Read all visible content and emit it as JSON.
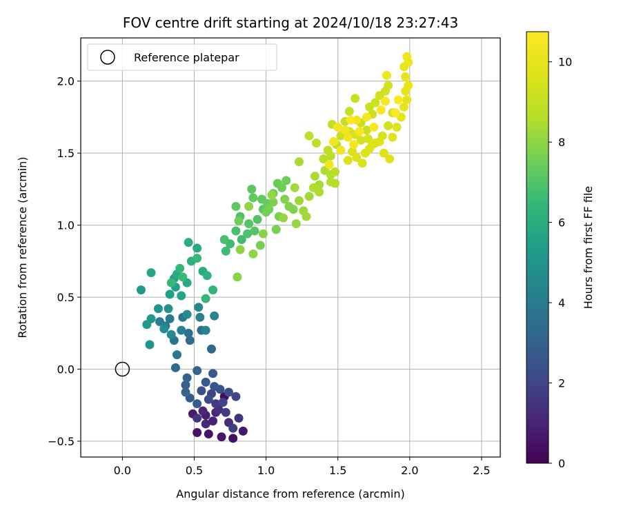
{
  "chart_data": {
    "type": "scatter",
    "title": "FOV centre drift starting at 2024/10/18 23:27:43",
    "xlabel": "Angular distance from reference (arcmin)",
    "ylabel": "Rotation from reference (arcmin)",
    "xlim": [
      -0.29,
      2.63
    ],
    "ylim": [
      -0.61,
      2.3
    ],
    "x_ticks": [
      0.0,
      0.5,
      1.0,
      1.5,
      2.0,
      2.5
    ],
    "x_tick_labels": [
      "0.0",
      "0.5",
      "1.0",
      "1.5",
      "2.0",
      "2.5"
    ],
    "y_ticks": [
      -0.5,
      0.0,
      0.5,
      1.0,
      1.5,
      2.0
    ],
    "y_tick_labels": [
      "−0.5",
      "0.0",
      "0.5",
      "1.0",
      "1.5",
      "2.0"
    ],
    "grid": true,
    "legend": {
      "position": "top-left",
      "entries": [
        {
          "label": "Reference platepar",
          "marker": "open-circle",
          "x": 0.0,
          "y": 0.0
        }
      ]
    },
    "colorbar": {
      "label": "Hours from first FF file",
      "colormap": "viridis",
      "range": [
        0,
        10.75
      ],
      "ticks": [
        0,
        2,
        4,
        6,
        8,
        10
      ],
      "tick_labels": [
        "0",
        "2",
        "4",
        "6",
        "8",
        "10"
      ]
    },
    "points": [
      [
        0.71,
        -0.19,
        0.3
      ],
      [
        0.77,
        -0.48,
        0.4
      ],
      [
        0.6,
        -0.45,
        0.5
      ],
      [
        0.52,
        -0.44,
        0.5
      ],
      [
        0.69,
        -0.47,
        0.6
      ],
      [
        0.84,
        -0.43,
        0.6
      ],
      [
        0.49,
        -0.31,
        0.7
      ],
      [
        0.58,
        -0.32,
        0.8
      ],
      [
        0.63,
        -0.36,
        0.9
      ],
      [
        0.65,
        -0.3,
        1.0
      ],
      [
        0.56,
        -0.29,
        1.0
      ],
      [
        0.58,
        -0.38,
        1.1
      ],
      [
        0.74,
        -0.37,
        1.2
      ],
      [
        0.67,
        -0.28,
        1.3
      ],
      [
        0.81,
        -0.34,
        1.4
      ],
      [
        0.52,
        -0.34,
        1.5
      ],
      [
        0.65,
        -0.24,
        1.6
      ],
      [
        0.72,
        -0.3,
        1.7
      ],
      [
        0.77,
        -0.41,
        1.8
      ],
      [
        0.62,
        -0.17,
        1.9
      ],
      [
        0.7,
        -0.23,
        2.0
      ],
      [
        0.79,
        -0.19,
        2.1
      ],
      [
        0.6,
        -0.21,
        2.2
      ],
      [
        0.74,
        -0.16,
        2.3
      ],
      [
        0.55,
        -0.15,
        2.4
      ],
      [
        0.68,
        -0.14,
        2.5
      ],
      [
        0.64,
        -0.12,
        2.5
      ],
      [
        0.58,
        -0.09,
        2.6
      ],
      [
        0.63,
        -0.03,
        2.7
      ],
      [
        0.47,
        -0.2,
        2.8
      ],
      [
        0.52,
        -0.24,
        2.8
      ],
      [
        0.44,
        -0.11,
        2.9
      ],
      [
        0.45,
        -0.06,
        3.0
      ],
      [
        0.44,
        -0.16,
        3.1
      ],
      [
        0.52,
        -0.01,
        3.1
      ],
      [
        0.62,
        0.14,
        3.2
      ],
      [
        0.37,
        0.01,
        3.3
      ],
      [
        0.47,
        0.2,
        3.4
      ],
      [
        0.55,
        0.27,
        3.5
      ],
      [
        0.46,
        0.25,
        3.6
      ],
      [
        0.36,
        0.2,
        3.7
      ],
      [
        0.42,
        0.36,
        3.8
      ],
      [
        0.33,
        0.35,
        3.9
      ],
      [
        0.38,
        0.1,
        3.9
      ],
      [
        0.3,
        0.3,
        4.0
      ],
      [
        0.26,
        0.33,
        4.1
      ],
      [
        0.41,
        0.27,
        4.2
      ],
      [
        0.54,
        0.36,
        4.3
      ],
      [
        0.58,
        0.27,
        4.4
      ],
      [
        0.64,
        0.37,
        4.5
      ],
      [
        0.53,
        0.43,
        4.5
      ],
      [
        0.34,
        0.24,
        4.6
      ],
      [
        0.45,
        0.38,
        4.7
      ],
      [
        0.29,
        0.28,
        4.8
      ],
      [
        0.32,
        0.42,
        4.9
      ],
      [
        0.25,
        0.42,
        5.0
      ],
      [
        0.19,
        0.17,
        5.0
      ],
      [
        0.2,
        0.35,
        5.1
      ],
      [
        0.17,
        0.31,
        5.2
      ],
      [
        0.13,
        0.55,
        5.3
      ],
      [
        0.33,
        0.52,
        5.4
      ],
      [
        0.37,
        0.57,
        5.5
      ],
      [
        0.36,
        0.63,
        5.5
      ],
      [
        0.41,
        0.51,
        5.6
      ],
      [
        0.2,
        0.67,
        5.7
      ],
      [
        0.38,
        0.66,
        5.8
      ],
      [
        0.45,
        0.6,
        5.8
      ],
      [
        0.52,
        0.84,
        5.9
      ],
      [
        0.46,
        0.88,
        6.0
      ],
      [
        0.56,
        0.68,
        6.0
      ],
      [
        0.48,
        0.75,
        6.1
      ],
      [
        0.59,
        0.65,
        6.2
      ],
      [
        0.63,
        0.55,
        6.3
      ],
      [
        0.58,
        0.49,
        6.4
      ],
      [
        0.4,
        0.7,
        6.4
      ],
      [
        0.42,
        0.64,
        6.5
      ],
      [
        0.52,
        0.77,
        6.5
      ],
      [
        0.34,
        0.6,
        6.5
      ],
      [
        0.72,
        0.82,
        6.6
      ],
      [
        0.75,
        0.87,
        6.6
      ],
      [
        0.83,
        0.9,
        6.7
      ],
      [
        0.71,
        0.9,
        6.8
      ],
      [
        0.79,
        0.96,
        6.8
      ],
      [
        0.82,
        1.06,
        6.9
      ],
      [
        0.87,
        0.94,
        6.9
      ],
      [
        0.94,
        1.04,
        7.0
      ],
      [
        0.92,
        0.96,
        7.0
      ],
      [
        0.98,
        1.11,
        7.1
      ],
      [
        0.88,
        1.01,
        7.1
      ],
      [
        0.9,
        1.25,
        7.2
      ],
      [
        0.79,
        1.13,
        7.2
      ],
      [
        0.91,
        1.19,
        7.3
      ],
      [
        0.97,
        1.18,
        7.3
      ],
      [
        1.01,
        1.15,
        7.4
      ],
      [
        1.05,
        1.22,
        7.4
      ],
      [
        1.08,
        1.29,
        7.4
      ],
      [
        1.11,
        1.26,
        7.5
      ],
      [
        1.14,
        1.31,
        7.5
      ],
      [
        0.81,
        1.03,
        7.5
      ],
      [
        0.96,
        0.86,
        7.6
      ],
      [
        1.0,
        1.09,
        7.6
      ],
      [
        1.02,
        1.11,
        7.6
      ],
      [
        1.05,
        1.16,
        7.7
      ],
      [
        1.07,
        0.97,
        7.7
      ],
      [
        1.09,
        1.06,
        7.7
      ],
      [
        1.13,
        1.18,
        7.8
      ],
      [
        1.16,
        1.13,
        7.8
      ],
      [
        1.19,
        1.11,
        7.8
      ],
      [
        0.98,
        0.94,
        7.9
      ],
      [
        0.8,
        0.64,
        7.9
      ],
      [
        0.82,
        0.83,
        8.0
      ],
      [
        0.91,
        0.8,
        8.0
      ],
      [
        0.88,
        1.13,
        8.0
      ],
      [
        1.04,
        1.21,
        8.1
      ],
      [
        1.12,
        1.05,
        8.1
      ],
      [
        1.21,
        1.01,
        8.1
      ],
      [
        1.23,
        1.17,
        8.2
      ],
      [
        1.26,
        1.1,
        8.2
      ],
      [
        1.3,
        1.2,
        8.3
      ],
      [
        1.28,
        1.06,
        8.3
      ],
      [
        1.2,
        1.26,
        8.3
      ],
      [
        1.23,
        1.44,
        8.4
      ],
      [
        1.34,
        1.34,
        8.4
      ],
      [
        1.37,
        1.28,
        8.4
      ],
      [
        1.41,
        1.38,
        8.5
      ],
      [
        1.33,
        1.26,
        8.5
      ],
      [
        1.37,
        1.23,
        8.5
      ],
      [
        1.45,
        1.3,
        8.6
      ],
      [
        1.45,
        1.35,
        8.6
      ],
      [
        1.48,
        1.29,
        8.6
      ],
      [
        1.48,
        1.37,
        8.7
      ],
      [
        1.45,
        1.48,
        8.7
      ],
      [
        1.4,
        1.46,
        8.7
      ],
      [
        1.35,
        1.57,
        8.8
      ],
      [
        1.3,
        1.62,
        8.8
      ],
      [
        1.43,
        1.52,
        8.8
      ],
      [
        1.49,
        1.56,
        8.9
      ],
      [
        1.46,
        1.7,
        8.9
      ],
      [
        1.52,
        1.62,
        9.0
      ],
      [
        1.55,
        1.72,
        9.0
      ],
      [
        1.58,
        1.79,
        9.0
      ],
      [
        1.62,
        1.88,
        9.1
      ],
      [
        1.66,
        1.71,
        9.1
      ],
      [
        1.7,
        1.66,
        9.1
      ],
      [
        1.74,
        1.77,
        9.2
      ],
      [
        1.72,
        1.82,
        9.2
      ],
      [
        1.76,
        1.85,
        9.2
      ],
      [
        1.79,
        1.9,
        9.3
      ],
      [
        1.83,
        1.93,
        9.3
      ],
      [
        1.85,
        1.97,
        9.3
      ],
      [
        1.88,
        1.78,
        9.3
      ],
      [
        1.85,
        1.69,
        9.4
      ],
      [
        1.81,
        1.62,
        9.4
      ],
      [
        1.76,
        1.57,
        9.4
      ],
      [
        1.71,
        1.6,
        9.5
      ],
      [
        1.66,
        1.59,
        9.5
      ],
      [
        1.62,
        1.63,
        9.5
      ],
      [
        1.58,
        1.65,
        9.5
      ],
      [
        1.6,
        1.51,
        9.6
      ],
      [
        1.57,
        1.45,
        9.6
      ],
      [
        1.63,
        1.47,
        9.6
      ],
      [
        1.67,
        1.43,
        9.6
      ],
      [
        1.69,
        1.5,
        9.7
      ],
      [
        1.72,
        1.53,
        9.7
      ],
      [
        1.74,
        1.56,
        9.7
      ],
      [
        1.79,
        1.58,
        9.7
      ],
      [
        1.82,
        1.5,
        9.8
      ],
      [
        1.86,
        1.46,
        9.8
      ],
      [
        1.88,
        1.61,
        9.8
      ],
      [
        1.91,
        1.68,
        9.8
      ],
      [
        1.94,
        1.75,
        9.9
      ],
      [
        1.96,
        1.82,
        9.9
      ],
      [
        1.98,
        1.87,
        9.9
      ],
      [
        1.97,
        1.93,
        10.0
      ],
      [
        1.99,
        1.97,
        10.0
      ],
      [
        1.97,
        2.03,
        10.0
      ],
      [
        1.96,
        2.1,
        10.1
      ],
      [
        1.99,
        2.13,
        10.1
      ],
      [
        1.98,
        2.17,
        10.2
      ],
      [
        1.84,
        2.04,
        10.2
      ],
      [
        1.63,
        1.73,
        10.2
      ],
      [
        1.55,
        1.66,
        10.3
      ],
      [
        1.5,
        1.68,
        10.3
      ],
      [
        1.57,
        1.61,
        10.3
      ],
      [
        1.52,
        1.52,
        10.4
      ],
      [
        1.44,
        1.42,
        10.4
      ],
      [
        1.47,
        1.58,
        10.4
      ],
      [
        1.61,
        1.56,
        10.5
      ],
      [
        1.65,
        1.65,
        10.5
      ],
      [
        1.7,
        1.75,
        10.5
      ],
      [
        1.75,
        1.68,
        10.6
      ],
      [
        1.8,
        1.8,
        10.6
      ],
      [
        1.83,
        1.86,
        10.6
      ],
      [
        1.9,
        1.78,
        10.7
      ],
      [
        1.92,
        1.87,
        10.7
      ],
      [
        1.59,
        1.73,
        10.7
      ]
    ]
  }
}
